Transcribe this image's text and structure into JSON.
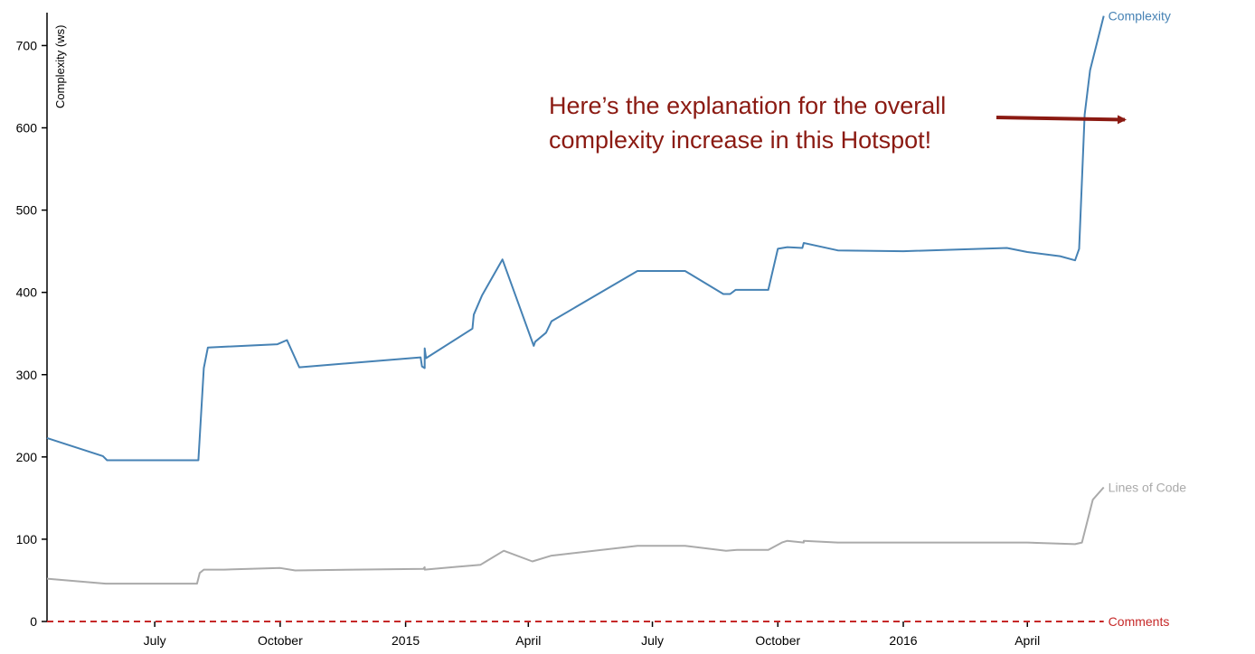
{
  "chart_data": {
    "type": "line",
    "ylabel": "Complexity (ws)",
    "ylim": [
      0,
      740
    ],
    "y_ticks": [
      0,
      100,
      200,
      300,
      400,
      500,
      600,
      700
    ],
    "xlim": [
      "2014-04-13",
      "2016-07-06"
    ],
    "x_ticks": [
      {
        "date": "2014-07-01",
        "label": "July"
      },
      {
        "date": "2014-10-01",
        "label": "October"
      },
      {
        "date": "2015-01-01",
        "label": "2015"
      },
      {
        "date": "2015-04-01",
        "label": "April"
      },
      {
        "date": "2015-07-01",
        "label": "July"
      },
      {
        "date": "2015-10-01",
        "label": "October"
      },
      {
        "date": "2016-01-01",
        "label": "2016"
      },
      {
        "date": "2016-04-01",
        "label": "April"
      }
    ],
    "series": [
      {
        "name": "Complexity",
        "color": "#4682b4",
        "points": [
          [
            "2014-04-13",
            223
          ],
          [
            "2014-05-24",
            201
          ],
          [
            "2014-05-27",
            196
          ],
          [
            "2014-08-02",
            196
          ],
          [
            "2014-08-06",
            308
          ],
          [
            "2014-08-09",
            333
          ],
          [
            "2014-09-29",
            337
          ],
          [
            "2014-10-06",
            342
          ],
          [
            "2014-10-15",
            309
          ],
          [
            "2015-01-12",
            321
          ],
          [
            "2015-01-13",
            310
          ],
          [
            "2015-01-15",
            308
          ],
          [
            "2015-01-15",
            332
          ],
          [
            "2015-01-16",
            320
          ],
          [
            "2015-02-19",
            356
          ],
          [
            "2015-02-20",
            373
          ],
          [
            "2015-02-26",
            396
          ],
          [
            "2015-03-13",
            440
          ],
          [
            "2015-04-05",
            335
          ],
          [
            "2015-04-06",
            340
          ],
          [
            "2015-04-14",
            351
          ],
          [
            "2015-04-18",
            365
          ],
          [
            "2015-06-20",
            426
          ],
          [
            "2015-07-05",
            426
          ],
          [
            "2015-07-25",
            426
          ],
          [
            "2015-08-22",
            398
          ],
          [
            "2015-08-27",
            398
          ],
          [
            "2015-08-31",
            403
          ],
          [
            "2015-09-24",
            403
          ],
          [
            "2015-10-01",
            453
          ],
          [
            "2015-10-08",
            455
          ],
          [
            "2015-10-19",
            454
          ],
          [
            "2015-10-20",
            460
          ],
          [
            "2015-11-14",
            451
          ],
          [
            "2016-01-01",
            450
          ],
          [
            "2016-03-17",
            454
          ],
          [
            "2016-04-01",
            449
          ],
          [
            "2016-04-25",
            444
          ],
          [
            "2016-05-06",
            439
          ],
          [
            "2016-05-09",
            453
          ],
          [
            "2016-05-13",
            616
          ],
          [
            "2016-05-17",
            670
          ],
          [
            "2016-05-27",
            736
          ]
        ]
      },
      {
        "name": "Lines of Code",
        "color": "#aaaaaa",
        "points": [
          [
            "2014-04-13",
            52
          ],
          [
            "2014-05-26",
            46
          ],
          [
            "2014-08-01",
            46
          ],
          [
            "2014-08-03",
            59
          ],
          [
            "2014-08-06",
            63
          ],
          [
            "2014-08-21",
            63
          ],
          [
            "2014-10-01",
            65
          ],
          [
            "2014-10-12",
            62
          ],
          [
            "2015-01-14",
            64
          ],
          [
            "2015-01-15",
            66
          ],
          [
            "2015-01-15",
            63
          ],
          [
            "2015-02-25",
            69
          ],
          [
            "2015-03-01",
            73
          ],
          [
            "2015-03-14",
            86
          ],
          [
            "2015-04-04",
            73
          ],
          [
            "2015-04-18",
            80
          ],
          [
            "2015-06-20",
            92
          ],
          [
            "2015-07-25",
            92
          ],
          [
            "2015-08-24",
            86
          ],
          [
            "2015-09-01",
            87
          ],
          [
            "2015-09-24",
            87
          ],
          [
            "2015-10-04",
            96
          ],
          [
            "2015-10-08",
            98
          ],
          [
            "2015-10-20",
            96
          ],
          [
            "2015-10-20",
            98
          ],
          [
            "2015-11-14",
            96
          ],
          [
            "2016-01-01",
            96
          ],
          [
            "2016-04-01",
            96
          ],
          [
            "2016-05-06",
            94
          ],
          [
            "2016-05-11",
            96
          ],
          [
            "2016-05-19",
            148
          ],
          [
            "2016-05-27",
            163
          ]
        ]
      },
      {
        "name": "Comments",
        "color": "#c62828",
        "dashed": true,
        "points": [
          [
            "2014-04-13",
            0
          ],
          [
            "2016-05-27",
            0
          ]
        ]
      }
    ],
    "annotation": {
      "lines": [
        "Here’s the explanation for the overall",
        "complexity increase in this Hotspot!"
      ],
      "color": "#8b1a12"
    }
  }
}
